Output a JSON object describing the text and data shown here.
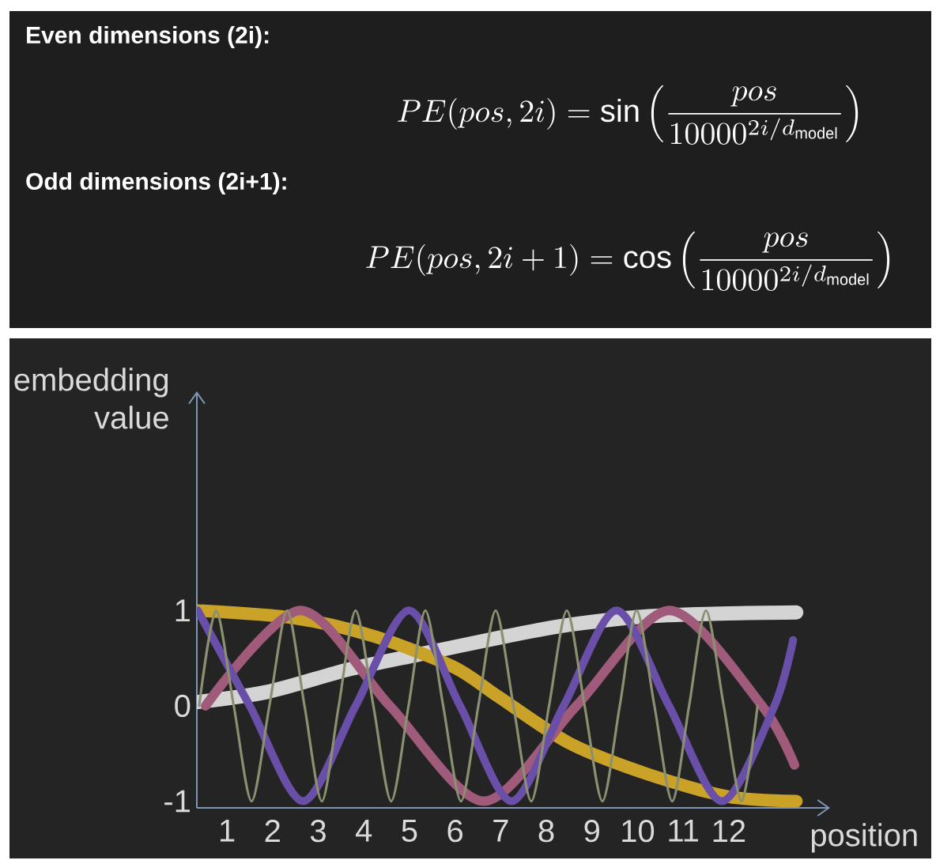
{
  "chart_data": [
    {
      "type": "other",
      "annotations": [
        "Even dimensions (2i):",
        "PE(pos, 2i) = \\sin\\left(\\frac{pos}{10000^{2i/d_{\\mathrm{model}}}}\\right)",
        "Odd dimensions (2i+1):",
        "PE(pos, 2i+1) = \\cos\\left(\\frac{pos}{10000^{2i/d_{\\mathrm{model}}}}\\right)"
      ]
    },
    {
      "type": "line",
      "xlabel": "position",
      "ylabel": "embedding value",
      "xlim": [
        0.34,
        14.22
      ],
      "ylim": [
        -1.07,
        3.3
      ],
      "xticks": [
        1,
        2,
        3,
        4,
        5,
        6,
        7,
        8,
        9,
        10,
        11,
        12
      ],
      "yticks": [
        -1,
        0,
        1
      ],
      "series": [
        {
          "color": "#d4d4d4",
          "x": [
            0.36,
            1.92,
            3.65,
            5.21,
            7.12,
            8.5,
            10.24,
            11.97,
            13.48
          ],
          "values": [
            0.04,
            0.15,
            0.38,
            0.54,
            0.73,
            0.85,
            0.94,
            0.97,
            0.98
          ]
        },
        {
          "color": "#c9a227",
          "x": [
            0.36,
            2.49,
            4.22,
            5.96,
            6.94,
            8.5,
            10.24,
            11.97,
            13.48
          ],
          "values": [
            1.0,
            0.92,
            0.73,
            0.41,
            0.1,
            -0.39,
            -0.72,
            -0.95,
            -1.0
          ]
        },
        {
          "color": "#a05a7a",
          "x": [
            0.53,
            2.61,
            4.57,
            6.63,
            8.66,
            10.7,
            12.73,
            13.44
          ],
          "values": [
            0,
            1,
            0,
            -1,
            0,
            1,
            0,
            -0.62
          ]
        },
        {
          "color": "#6a4fa8",
          "x": [
            0.36,
            1.5,
            2.67,
            3.82,
            4.99,
            6.11,
            7.24,
            8.38,
            9.54,
            10.69,
            11.85,
            13.0,
            13.41
          ],
          "values": [
            1,
            0,
            -1,
            0,
            1,
            0,
            -1,
            0,
            1,
            0,
            -1,
            0,
            0.69
          ]
        },
        {
          "color": "#8a9070",
          "x": [
            0.39,
            0.76,
            1.15,
            1.54,
            1.93,
            2.32,
            2.7,
            3.08,
            3.45,
            3.82,
            4.21,
            4.6,
            4.98,
            5.35,
            5.74,
            6.13,
            6.51,
            6.89,
            7.28,
            7.67,
            8.06,
            8.45,
            8.84,
            9.23,
            9.61,
            9.98,
            10.37,
            10.76,
            11.13,
            11.5,
            11.89,
            12.28,
            12.63
          ],
          "values": [
            0,
            1,
            0,
            -1,
            0,
            1,
            0,
            -1,
            0,
            1,
            0,
            -1,
            0,
            1,
            0,
            -1,
            0,
            1,
            0,
            -1,
            0,
            1,
            0,
            -1,
            0,
            1,
            0,
            -1,
            0,
            1,
            0,
            -1,
            0
          ]
        }
      ]
    }
  ]
}
